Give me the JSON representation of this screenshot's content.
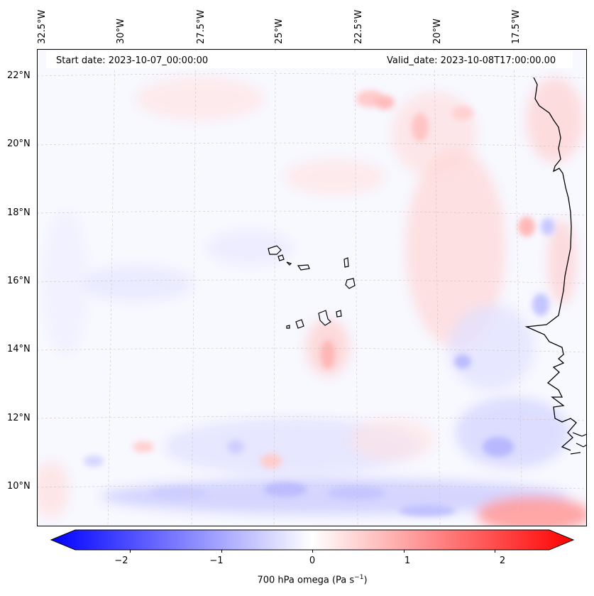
{
  "header": {
    "start_date": "Start date: 2023-10-07_00:00:00",
    "valid_date": "Valid_date: 2023-10-08T17:00:00.00"
  },
  "lon_labels": [
    "32.5°W",
    "30°W",
    "27.5°W",
    "25°W",
    "22.5°W",
    "20°W",
    "17.5°W"
  ],
  "lat_labels": [
    "22°N",
    "20°N",
    "18°N",
    "16°N",
    "14°N",
    "12°N",
    "10°N"
  ],
  "colorbar": {
    "ticks": [
      "−2",
      "−1",
      "0",
      "1",
      "2"
    ],
    "tick_values": [
      -2,
      -1,
      0,
      1,
      2
    ],
    "range": [
      -2.6,
      2.6
    ],
    "label_main": "700 hPa omega (Pa s",
    "label_sup": "−1",
    "label_end": ")",
    "colors": {
      "negative": "#0000ff",
      "zero": "#ffffff",
      "positive": "#ff0000"
    }
  },
  "map": {
    "field": "700 hPa omega",
    "region": "Cape Verde / West Africa coast"
  }
}
